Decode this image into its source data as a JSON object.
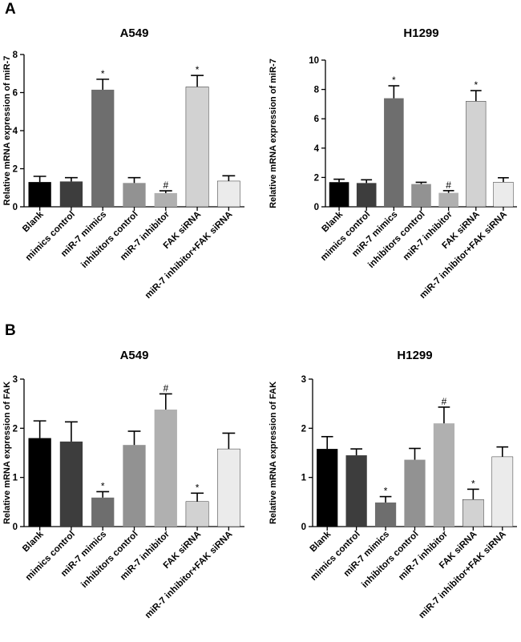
{
  "panels": {
    "A": "A",
    "B": "B"
  },
  "colors": [
    "#000000",
    "#3d3d3d",
    "#6e6e6e",
    "#929292",
    "#b0b0b0",
    "#d2d2d2",
    "#ebebeb"
  ],
  "chart_data": [
    {
      "panel": "A",
      "type": "bar",
      "title": "A549",
      "xlabel": "",
      "ylabel": "Relative mRNA expression of miR-7",
      "categories": [
        "Blank",
        "mimics control",
        "miR-7 mimics",
        "inhibitors control",
        "miR-7 inhibitor",
        "FAK siRNA",
        "miR-7 inhibitor+FAK siRNA"
      ],
      "values": [
        1.3,
        1.33,
        6.15,
        1.25,
        0.72,
        6.3,
        1.35
      ],
      "errors": [
        0.3,
        0.2,
        0.55,
        0.28,
        0.12,
        0.6,
        0.28
      ],
      "annotations": [
        "",
        "",
        "*",
        "",
        "#",
        "*",
        ""
      ],
      "ylim": [
        0,
        8
      ],
      "yticks": [
        0,
        2,
        4,
        6,
        8
      ]
    },
    {
      "panel": "A",
      "type": "bar",
      "title": "H1299",
      "xlabel": "",
      "ylabel": "Relative mRNA expression of miR-7",
      "categories": [
        "Blank",
        "mimics control",
        "miR-7 mimics",
        "inhibitors control",
        "miR-7 inhibitor",
        "FAK siRNA",
        "miR-7 inhibitor+FAK siRNA"
      ],
      "values": [
        1.68,
        1.62,
        7.4,
        1.55,
        0.95,
        7.2,
        1.68
      ],
      "errors": [
        0.2,
        0.22,
        0.85,
        0.12,
        0.15,
        0.72,
        0.3
      ],
      "annotations": [
        "",
        "",
        "*",
        "",
        "#",
        "*",
        ""
      ],
      "ylim": [
        0,
        10
      ],
      "yticks": [
        0,
        2,
        4,
        6,
        8,
        10
      ]
    },
    {
      "panel": "B",
      "type": "bar",
      "title": "A549",
      "xlabel": "",
      "ylabel": "Relative mRNA expression of FAK",
      "categories": [
        "Blank",
        "mimics control",
        "miR-7 mimics",
        "inhibitors control",
        "miR-7 inhibitor",
        "FAK siRNA",
        "miR-7 inhibitor+FAK siRNA"
      ],
      "values": [
        1.8,
        1.73,
        0.59,
        1.66,
        2.38,
        0.51,
        1.58
      ],
      "errors": [
        0.35,
        0.4,
        0.12,
        0.28,
        0.32,
        0.17,
        0.32
      ],
      "annotations": [
        "",
        "",
        "*",
        "",
        "#",
        "*",
        ""
      ],
      "ylim": [
        0,
        3
      ],
      "yticks": [
        0,
        1,
        2,
        3
      ]
    },
    {
      "panel": "B",
      "type": "bar",
      "title": "H1299",
      "xlabel": "",
      "ylabel": "Relative mRNA expression of FAK",
      "categories": [
        "Blank",
        "mimics control",
        "miR-7 mimics",
        "inhibitors control",
        "miR-7 inhibitor",
        "FAK siRNA",
        "miR-7 inhibitor+FAK siRNA"
      ],
      "values": [
        1.58,
        1.45,
        0.49,
        1.36,
        2.1,
        0.55,
        1.42
      ],
      "errors": [
        0.25,
        0.13,
        0.12,
        0.23,
        0.33,
        0.21,
        0.2
      ],
      "annotations": [
        "",
        "",
        "*",
        "",
        "#",
        "*",
        ""
      ],
      "ylim": [
        0,
        3
      ],
      "yticks": [
        0,
        1,
        2,
        3
      ]
    }
  ]
}
